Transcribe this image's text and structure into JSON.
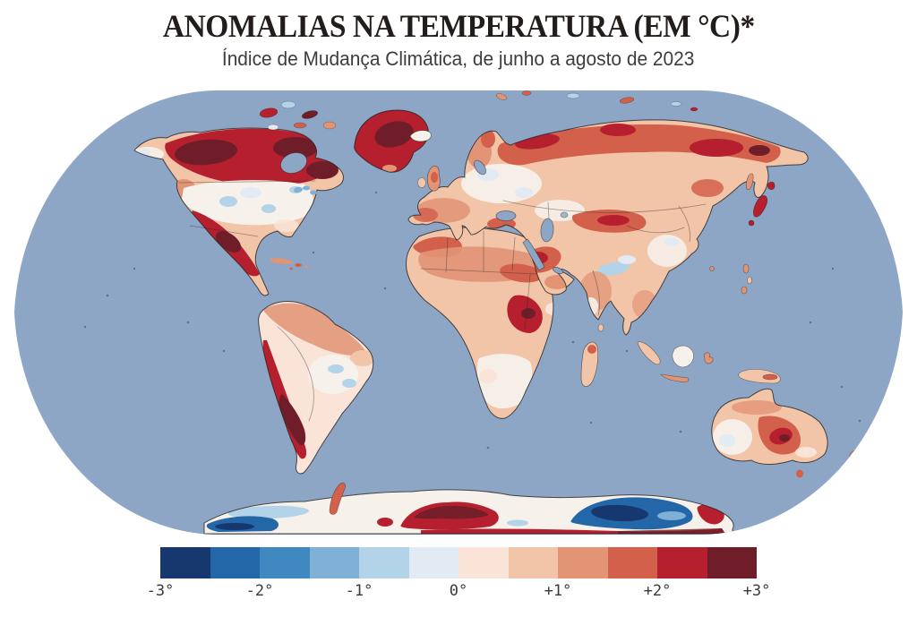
{
  "header": {
    "title": "ANOMALIAS NA TEMPERATURA (EM °C)*",
    "subtitle": "Índice de Mudança Climática, de junho a agosto de 2023"
  },
  "map": {
    "kind": "world-choropleth",
    "projection": "robinson",
    "period": "junho a agosto de 2023",
    "ocean_color": "#8ea6c6",
    "land_neutral_color": "#f6f1ea",
    "coastline_color": "#23211f"
  },
  "legend": {
    "unit": "°C",
    "range": [
      -3,
      3
    ],
    "stops": [
      "#16386e",
      "#2467a9",
      "#3f88c0",
      "#7fb1d7",
      "#b3d3e8",
      "#e2eaf3",
      "#f9e4d7",
      "#f2c4a8",
      "#e29475",
      "#d2604b",
      "#b51f2e",
      "#6f1e29"
    ],
    "tick_labels": [
      "-3°",
      "-2°",
      "-1°",
      "0°",
      "+1°",
      "+2°",
      "+3°"
    ]
  },
  "map_data": {
    "type": "heatmap",
    "title": "Anomalias na temperatura (em °C), junho a agosto de 2023",
    "regions": [
      {
        "name": "Canadá / Ártico canadense",
        "anomaly_c": 2.5
      },
      {
        "name": "Groenlândia",
        "anomaly_c": 3
      },
      {
        "name": "Estados Unidos (centro)",
        "anomaly_c": 0
      },
      {
        "name": "México / sudoeste dos EUA",
        "anomaly_c": 2.5
      },
      {
        "name": "Amazônia (norte da América do Sul)",
        "anomaly_c": 1
      },
      {
        "name": "Andes / Chile",
        "anomaly_c": 3
      },
      {
        "name": "Europa ocidental",
        "anomaly_c": 1.5
      },
      {
        "name": "Rússia ocidental",
        "anomaly_c": 0
      },
      {
        "name": "Sibéria (norte)",
        "anomaly_c": 2.5
      },
      {
        "name": "Oriente Médio",
        "anomaly_c": 2
      },
      {
        "name": "Norte da África / Saara",
        "anomaly_c": 1.5
      },
      {
        "name": "África central",
        "anomaly_c": 2.5
      },
      {
        "name": "Índia",
        "anomaly_c": 1
      },
      {
        "name": "Japão",
        "anomaly_c": 2.5
      },
      {
        "name": "Austrália (centro-leste)",
        "anomaly_c": 2
      },
      {
        "name": "Antártida oriental (interior)",
        "anomaly_c": -3
      },
      {
        "name": "Antártida (costa / oeste)",
        "anomaly_c": 3
      }
    ]
  }
}
